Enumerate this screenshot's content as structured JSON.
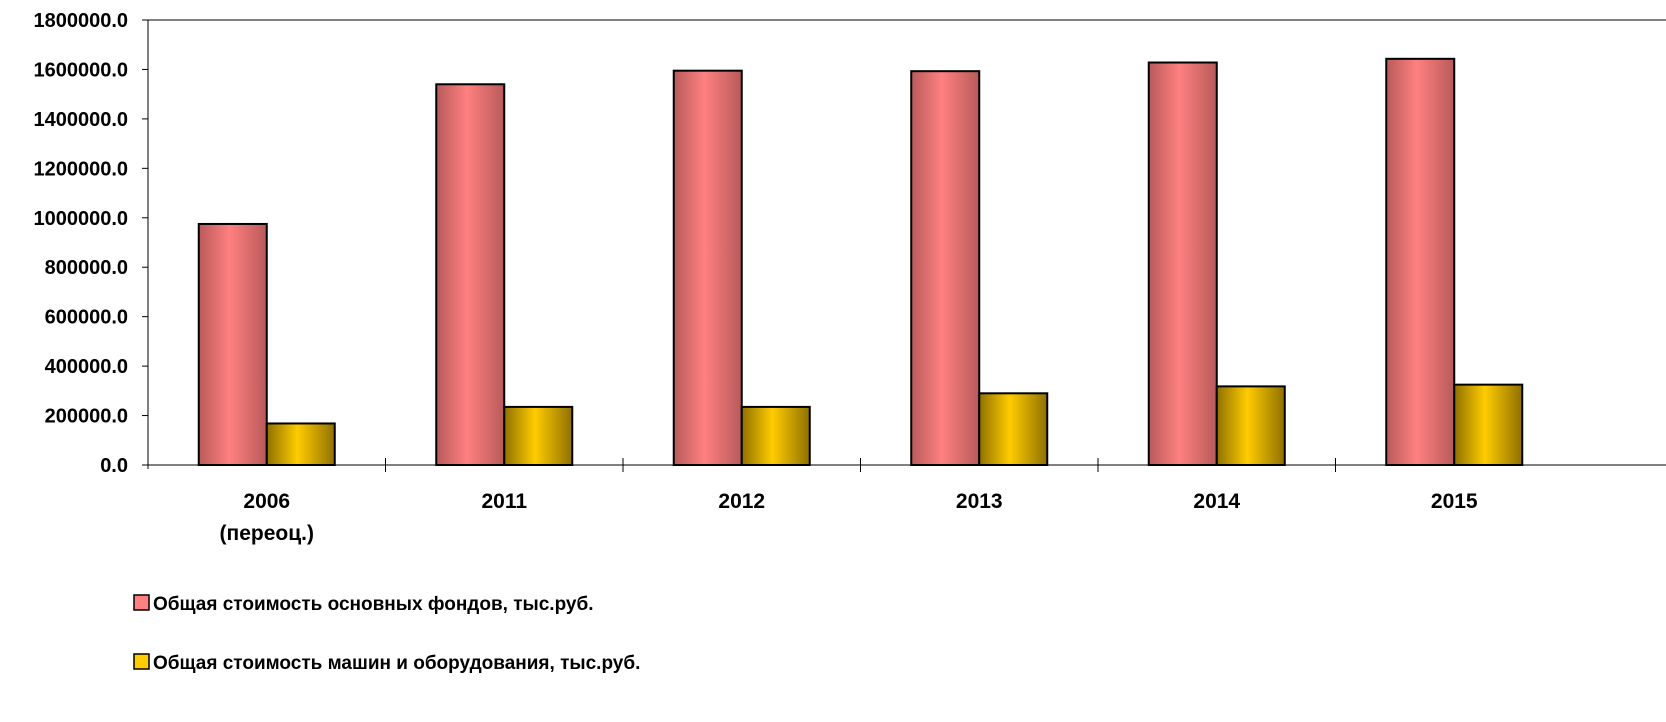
{
  "chart_data": {
    "type": "bar",
    "title": "",
    "xlabel": "",
    "ylabel": "",
    "categories": [
      [
        "2006",
        "(переоц.)"
      ],
      [
        "2011"
      ],
      [
        "2012"
      ],
      [
        "2013"
      ],
      [
        "2014"
      ],
      [
        "2015"
      ]
    ],
    "ylim": [
      0,
      1800000
    ],
    "yticks": [
      "0.0",
      "200000.0",
      "400000.0",
      "600000.0",
      "800000.0",
      "1000000.0",
      "1200000.0",
      "1400000.0",
      "1600000.0",
      "1800000.0"
    ],
    "grid": false,
    "legend_position": "bottom-left",
    "series": [
      {
        "name": "Общая стоимость основных фондов, тыс.руб.",
        "color": "#FF8080",
        "values": [
          975000,
          1540000,
          1595000,
          1593000,
          1628000,
          1643000
        ]
      },
      {
        "name": "Общая стоимость машин и оборудования, тыс.руб.",
        "color": "#FFCC00",
        "values": [
          168000,
          235000,
          235000,
          290000,
          318000,
          325000
        ]
      }
    ]
  }
}
